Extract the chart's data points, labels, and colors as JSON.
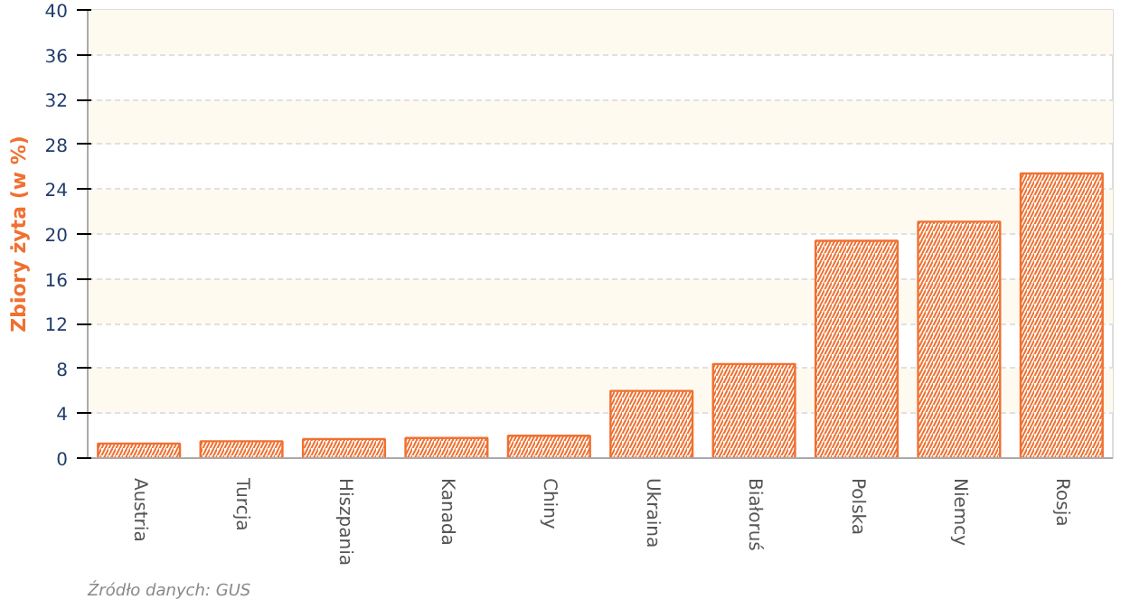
{
  "chart_data": {
    "type": "bar",
    "ylabel": "Zbiory żyta (w %)",
    "categories": [
      "Austria",
      "Turcja",
      "Hiszpania",
      "Kanada",
      "Chiny",
      "Ukraina",
      "Białoruś",
      "Polska",
      "Niemcy",
      "Rosja"
    ],
    "values": [
      1.3,
      1.5,
      1.7,
      1.8,
      2.0,
      6.0,
      8.4,
      19.4,
      21.1,
      25.4
    ],
    "color": "#f07030",
    "ylim": [
      0,
      40
    ],
    "yticks": [
      0,
      4,
      8,
      12,
      16,
      20,
      24,
      28,
      32,
      36,
      40
    ],
    "grid": "y",
    "annotations": [
      "Źródło danych: GUS"
    ]
  }
}
